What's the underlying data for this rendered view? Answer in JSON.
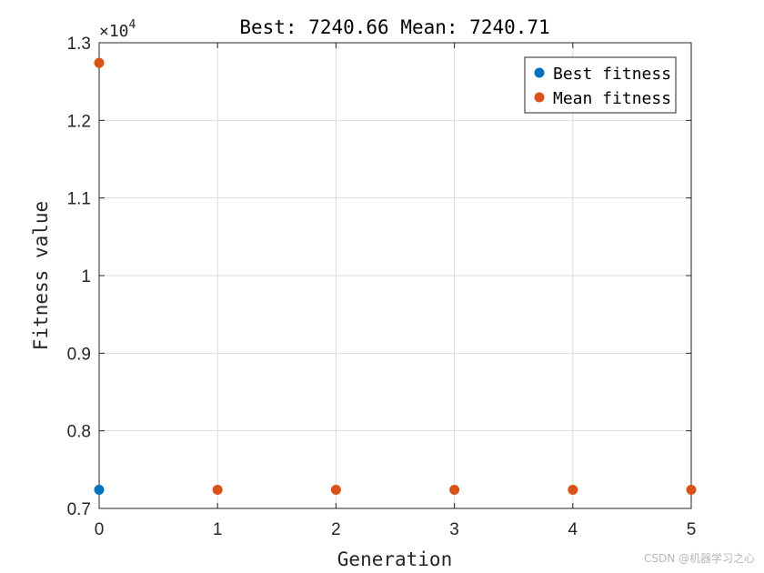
{
  "chart_data": {
    "type": "scatter",
    "title": "Best: 7240.66 Mean: 7240.71",
    "xlabel": "Generation",
    "ylabel": "Fitness value",
    "xlim": [
      0,
      5
    ],
    "ylim": [
      7000,
      13000
    ],
    "x_ticks": [
      0,
      1,
      2,
      3,
      4,
      5
    ],
    "x_tick_labels": [
      "0",
      "1",
      "2",
      "3",
      "4",
      "5"
    ],
    "y_ticks": [
      7000,
      8000,
      9000,
      10000,
      11000,
      12000,
      13000
    ],
    "y_tick_labels": [
      "0.7",
      "0.8",
      "0.9",
      "1",
      "1.1",
      "1.2",
      "1.3"
    ],
    "y_exponent_label": "×10",
    "y_exponent_power": "4",
    "grid": true,
    "legend_position": "top-right",
    "series": [
      {
        "name": "Best fitness",
        "color": "#0072BD",
        "x": [
          0
        ],
        "y": [
          7240.66
        ]
      },
      {
        "name": "Mean fitness",
        "color": "#D95319",
        "x": [
          0,
          1,
          2,
          3,
          4,
          5
        ],
        "y": [
          12740,
          7240.71,
          7240.71,
          7240.71,
          7240.71,
          7240.71
        ]
      }
    ]
  },
  "watermark": "CSDN @机器学习之心"
}
